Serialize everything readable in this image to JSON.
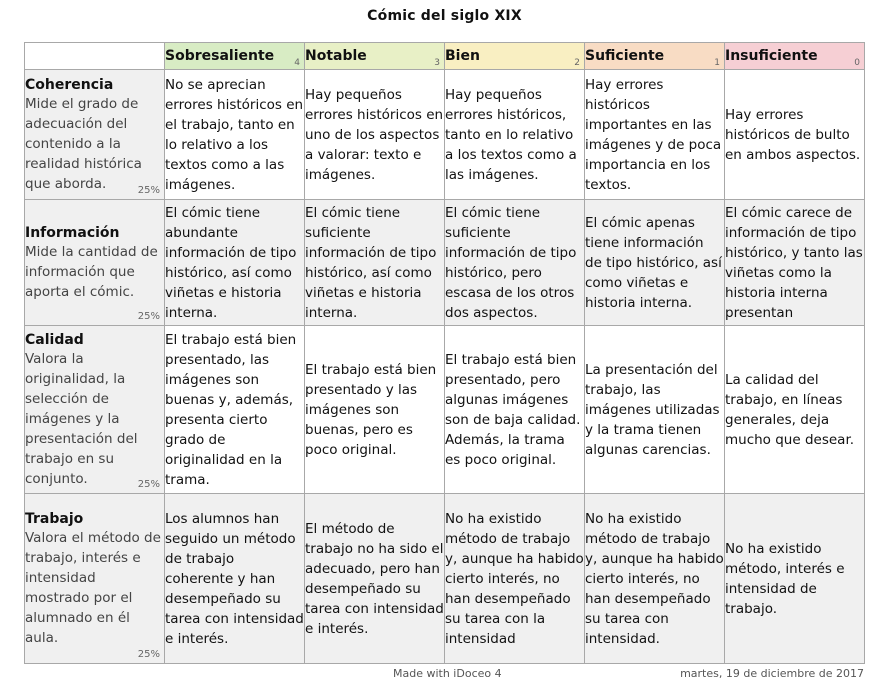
{
  "title": "Cómic del siglo XIX",
  "colors": {
    "sobresaliente": "#d8ecc4",
    "notable": "#e8f0c6",
    "bien": "#f9efc2",
    "suficiente": "#f8dcc4",
    "insuficiente": "#f6cfd4"
  },
  "levels": [
    {
      "name": "Sobresaliente",
      "score": "4"
    },
    {
      "name": "Notable",
      "score": "3"
    },
    {
      "name": "Bien",
      "score": "2"
    },
    {
      "name": "Suficiente",
      "score": "1"
    },
    {
      "name": "Insuficiente",
      "score": "0"
    }
  ],
  "criteria": [
    {
      "name": "Coherencia",
      "description": "Mide el grado de adecuación del contenido a la realidad histórica que aborda.",
      "weight": "25%",
      "cells": [
        "No se aprecian errores históricos en el trabajo, tanto en lo relativo a los textos como a las imágenes.",
        "Hay pequeños errores históricos en uno de los aspectos a valorar: texto e imágenes.",
        "Hay pequeños errores históricos, tanto en lo relativo a los textos como a las imágenes.",
        "Hay errores históricos importantes en las imágenes y de poca importancia en los textos.",
        "Hay errores históricos de bulto en ambos aspectos."
      ]
    },
    {
      "name": "Información",
      "description": "Mide la cantidad de información que aporta el cómic.",
      "weight": "25%",
      "cells": [
        "El cómic tiene abundante información de tipo histórico, así como viñetas e historia interna.",
        "El cómic tiene suficiente información de tipo histórico, así como viñetas e historia interna.",
        "El cómic tiene suficiente información de tipo histórico, pero escasa de los otros dos aspectos.",
        "El cómic apenas tiene información de tipo histórico, así como viñetas e historia interna.",
        "El cómic carece de información de tipo histórico, y tanto las viñetas como la historia interna presentan"
      ]
    },
    {
      "name": "Calidad",
      "description": "Valora la originalidad, la selección de imágenes y la presentación del trabajo en su conjunto.",
      "weight": "25%",
      "cells": [
        "El trabajo está bien presentado, las imágenes son buenas y, además, presenta cierto grado de originalidad en la trama.",
        "El trabajo está bien presentado y las imágenes son buenas, pero es poco original.",
        "El trabajo está bien presentado, pero algunas imágenes son de baja calidad. Además, la trama es poco original.",
        "La presentación del trabajo, las imágenes utilizadas y la trama tienen algunas carencias.",
        "La calidad del trabajo, en líneas generales, deja mucho que desear."
      ]
    },
    {
      "name": "Trabajo",
      "description": "Valora el método de trabajo, interés e intensidad mostrado por el alumnado en él aula.",
      "weight": "25%",
      "cells": [
        "Los alumnos han seguido un método de trabajo coherente y han desempeñado su tarea con intensidad e interés.",
        "El método de trabajo no ha sido el adecuado, pero han desempeñado su tarea con intensidad e interés.",
        "No ha existido método de trabajo y, aunque ha habido cierto interés, no han desempeñado su tarea con la intensidad",
        "No ha existido método de trabajo y, aunque ha habido cierto interés, no han desempeñado su tarea con intensidad.",
        "No ha existido método, interés e intensidad de trabajo."
      ]
    }
  ],
  "footer": {
    "made_with": "Made with iDoceo 4",
    "date": "martes, 19 de diciembre de 2017"
  }
}
